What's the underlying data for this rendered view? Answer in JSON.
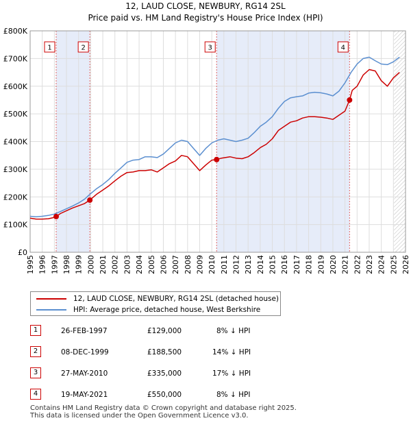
{
  "chart_data": {
    "type": "line",
    "title": "12, LAUD CLOSE, NEWBURY, RG14 2SL",
    "subtitle": "Price paid vs. HM Land Registry's House Price Index (HPI)",
    "y_tick_labels": [
      "£0",
      "£100K",
      "£200K",
      "£300K",
      "£400K",
      "£500K",
      "£600K",
      "£700K",
      "£800K"
    ],
    "y_ticks": [
      0,
      100000,
      200000,
      300000,
      400000,
      500000,
      600000,
      700000,
      800000
    ],
    "ylim": [
      0,
      800000
    ],
    "xlim": [
      1995,
      2026
    ],
    "x_ticks": [
      1995,
      1996,
      1997,
      1998,
      1999,
      2000,
      2001,
      2002,
      2003,
      2004,
      2005,
      2006,
      2007,
      2008,
      2009,
      2010,
      2011,
      2012,
      2013,
      2014,
      2015,
      2016,
      2017,
      2018,
      2019,
      2020,
      2021,
      2022,
      2023,
      2024,
      2025,
      2026
    ],
    "x_tick_labels": [
      "1995",
      "1996",
      "1997",
      "1998",
      "1999",
      "2000",
      "2001",
      "2002",
      "2003",
      "2004",
      "2005",
      "2006",
      "2007",
      "2008",
      "2009",
      "2010",
      "2011",
      "2012",
      "2013",
      "2014",
      "2015",
      "2016",
      "2017",
      "2018",
      "2019",
      "2020",
      "2021",
      "2022",
      "2023",
      "2024",
      "2025",
      "2026"
    ],
    "shaded_ranges": [
      [
        1997.15,
        1999.93
      ],
      [
        2010.4,
        2021.38
      ]
    ],
    "forecast_start": 2025.05,
    "series": [
      {
        "name": "12, LAUD CLOSE, NEWBURY, RG14 2SL (detached house)",
        "color": "#cc0000",
        "x": [
          1995.0,
          1995.5,
          1996.0,
          1996.5,
          1997.0,
          1997.15,
          1997.5,
          1998.0,
          1998.5,
          1999.0,
          1999.5,
          1999.93,
          2000.5,
          2001.0,
          2001.5,
          2002.0,
          2002.5,
          2003.0,
          2003.5,
          2004.0,
          2004.5,
          2005.0,
          2005.5,
          2006.0,
          2006.5,
          2007.0,
          2007.5,
          2008.0,
          2008.5,
          2009.0,
          2009.5,
          2010.0,
          2010.4,
          2010.8,
          2011.5,
          2012.0,
          2012.5,
          2013.0,
          2013.5,
          2014.0,
          2014.5,
          2015.0,
          2015.5,
          2016.0,
          2016.5,
          2017.0,
          2017.5,
          2018.0,
          2018.5,
          2019.0,
          2019.5,
          2020.0,
          2020.5,
          2021.0,
          2021.38,
          2021.6,
          2022.0,
          2022.5,
          2023.0,
          2023.5,
          2024.0,
          2024.5,
          2025.0,
          2025.5
        ],
        "y": [
          123000,
          120000,
          120000,
          121000,
          126000,
          129000,
          140000,
          150000,
          160000,
          168000,
          176000,
          188500,
          210000,
          225000,
          240000,
          258000,
          275000,
          288000,
          290000,
          295000,
          295000,
          298000,
          290000,
          305000,
          320000,
          330000,
          350000,
          345000,
          320000,
          295000,
          315000,
          333000,
          335000,
          340000,
          345000,
          340000,
          338000,
          345000,
          360000,
          378000,
          390000,
          410000,
          440000,
          455000,
          470000,
          475000,
          485000,
          490000,
          490000,
          488000,
          485000,
          480000,
          495000,
          510000,
          550000,
          585000,
          600000,
          640000,
          660000,
          655000,
          620000,
          600000,
          630000,
          650000
        ]
      },
      {
        "name": "HPI: Average price, detached house, West Berkshire",
        "color": "#5b8fd0",
        "x": [
          1995.0,
          1995.5,
          1996.0,
          1996.5,
          1997.0,
          1997.5,
          1998.0,
          1998.5,
          1999.0,
          1999.5,
          2000.0,
          2000.5,
          2001.0,
          2001.5,
          2002.0,
          2002.5,
          2003.0,
          2003.5,
          2004.0,
          2004.5,
          2005.0,
          2005.5,
          2006.0,
          2006.5,
          2007.0,
          2007.5,
          2008.0,
          2008.5,
          2009.0,
          2009.5,
          2010.0,
          2010.5,
          2011.0,
          2011.5,
          2012.0,
          2012.5,
          2013.0,
          2013.5,
          2014.0,
          2014.5,
          2015.0,
          2015.5,
          2016.0,
          2016.5,
          2017.0,
          2017.5,
          2018.0,
          2018.5,
          2019.0,
          2019.5,
          2020.0,
          2020.5,
          2021.0,
          2021.5,
          2022.0,
          2022.5,
          2023.0,
          2023.5,
          2024.0,
          2024.5,
          2025.0,
          2025.5
        ],
        "y": [
          130000,
          128000,
          130000,
          133000,
          138000,
          147000,
          157000,
          167000,
          178000,
          192000,
          212000,
          230000,
          245000,
          263000,
          285000,
          305000,
          325000,
          333000,
          335000,
          345000,
          345000,
          342000,
          355000,
          375000,
          395000,
          405000,
          400000,
          375000,
          350000,
          375000,
          395000,
          405000,
          410000,
          405000,
          400000,
          405000,
          412000,
          432000,
          455000,
          470000,
          490000,
          520000,
          545000,
          558000,
          562000,
          565000,
          575000,
          578000,
          576000,
          572000,
          565000,
          582000,
          612000,
          650000,
          680000,
          700000,
          705000,
          692000,
          680000,
          678000,
          688000,
          705000
        ]
      }
    ],
    "sale_points": [
      {
        "label": "1",
        "x": 1997.15,
        "y": 129000
      },
      {
        "label": "2",
        "x": 1999.93,
        "y": 188500
      },
      {
        "label": "3",
        "x": 2010.4,
        "y": 335000
      },
      {
        "label": "4",
        "x": 2021.38,
        "y": 550000
      }
    ]
  },
  "legend": {
    "property": "12, LAUD CLOSE, NEWBURY, RG14 2SL (detached house)",
    "hpi": "HPI: Average price, detached house, West Berkshire"
  },
  "sales": [
    {
      "num": "1",
      "date": "26-FEB-1997",
      "price": "£129,000",
      "hpi": "8% ↓ HPI"
    },
    {
      "num": "2",
      "date": "08-DEC-1999",
      "price": "£188,500",
      "hpi": "14% ↓ HPI"
    },
    {
      "num": "3",
      "date": "27-MAY-2010",
      "price": "£335,000",
      "hpi": "17% ↓ HPI"
    },
    {
      "num": "4",
      "date": "19-MAY-2021",
      "price": "£550,000",
      "hpi": "8% ↓ HPI"
    }
  ],
  "footer": {
    "line1": "Contains HM Land Registry data © Crown copyright and database right 2025.",
    "line2": "This data is licensed under the Open Government Licence v3.0."
  }
}
